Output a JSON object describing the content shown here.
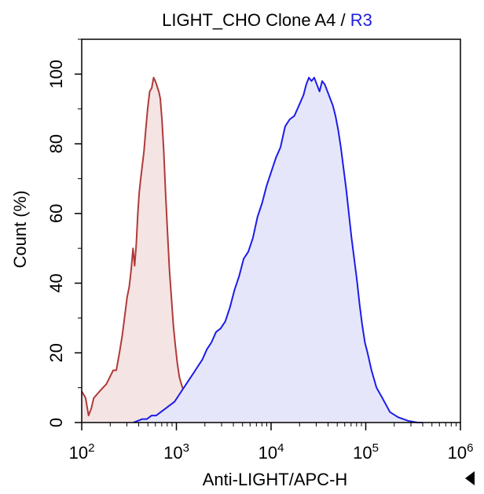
{
  "chart_data": {
    "type": "area",
    "title": "LIGHT_CHO Clone A4",
    "title_separator": " / ",
    "title_gate": "R3",
    "title_gate_color": "#2020e0",
    "xlabel": "Anti-LIGHT/APC-H",
    "ylabel": "Count (%)",
    "xscale": "log",
    "xlim": [
      100,
      1000000
    ],
    "ylim": [
      0,
      110
    ],
    "grid": false,
    "legend": "none",
    "x_ticks": [
      {
        "value": 100,
        "base": "10",
        "exp": "2"
      },
      {
        "value": 1000,
        "base": "10",
        "exp": "3"
      },
      {
        "value": 10000,
        "base": "10",
        "exp": "4"
      },
      {
        "value": 100000,
        "base": "10",
        "exp": "5"
      },
      {
        "value": 1000000,
        "base": "10",
        "exp": "6"
      }
    ],
    "y_ticks": [
      {
        "value": 0,
        "label": "0"
      },
      {
        "value": 20,
        "label": "20"
      },
      {
        "value": 40,
        "label": "40"
      },
      {
        "value": 60,
        "label": "60"
      },
      {
        "value": 80,
        "label": "80"
      },
      {
        "value": 100,
        "label": "100"
      }
    ],
    "series": [
      {
        "color": "#b03a3a",
        "fill": "#f5e4e4",
        "x": [
          100,
          110,
          118,
          126,
          134,
          144,
          155,
          168,
          182,
          198,
          215,
          232,
          250,
          268,
          286,
          302,
          318,
          333,
          348,
          362,
          377,
          391,
          405,
          420,
          437,
          455,
          475,
          497,
          522,
          549,
          575,
          598,
          617,
          633,
          652,
          676,
          704,
          735,
          768,
          804,
          843,
          885,
          929,
          975,
          1023,
          1075,
          1130,
          1189,
          1251,
          1318,
          1390,
          1467,
          1549,
          1637,
          1732,
          1834,
          1944,
          2063,
          2190,
          2328,
          2477,
          2638,
          2812,
          3000,
          3204,
          3424,
          3663,
          3922,
          4203
        ],
        "y": [
          9,
          7,
          2,
          4,
          7,
          8,
          9,
          10,
          11,
          13,
          15,
          15,
          20,
          25,
          31,
          36,
          39,
          44,
          50,
          45,
          51,
          60,
          66,
          70,
          74,
          78,
          84,
          90,
          95,
          96,
          99,
          98,
          97,
          96,
          95,
          93,
          87,
          78,
          66,
          55,
          44,
          36,
          28,
          22,
          17,
          13,
          11,
          9,
          8,
          7,
          6,
          6,
          5,
          5,
          4,
          4,
          3,
          3,
          3,
          2,
          2,
          2,
          1.5,
          1,
          1,
          1,
          0.5,
          0.5,
          0
        ]
      },
      {
        "color": "#1c1ce8",
        "fill": "#e6e6fa",
        "x": [
          350,
          391,
          437,
          489,
          547,
          612,
          684,
          765,
          856,
          957,
          1071,
          1198,
          1340,
          1499,
          1676,
          1875,
          2097,
          2346,
          2624,
          2935,
          3282,
          3671,
          4106,
          4593,
          5137,
          5746,
          6427,
          7189,
          8041,
          8993,
          10059,
          11251,
          12584,
          14075,
          15742,
          17607,
          19693,
          22026,
          23500,
          25071,
          26748,
          28538,
          30447,
          32484,
          34658,
          36978,
          39453,
          42095,
          44913,
          47921,
          51131,
          54557,
          58213,
          62114,
          66278,
          70721,
          75462,
          80525,
          85928,
          91697,
          97856,
          104430,
          115000,
          130000,
          150000,
          180000,
          220000,
          280000,
          350000,
          400000
        ],
        "y": [
          0,
          0.5,
          1,
          1,
          2,
          2,
          3,
          4,
          5,
          6,
          8,
          10,
          12,
          14,
          16,
          18,
          21,
          23,
          26,
          27,
          29,
          33,
          38,
          42,
          47,
          49,
          53,
          59,
          63,
          68,
          72,
          76,
          79,
          85,
          87,
          88,
          91,
          94,
          97,
          99,
          98,
          99,
          97,
          95,
          98,
          97,
          95,
          93,
          91,
          88,
          84,
          79,
          73,
          67,
          60,
          53,
          47,
          41,
          34,
          28,
          23,
          20,
          15,
          10,
          7,
          3,
          1.5,
          0.5,
          0,
          0
        ]
      }
    ]
  }
}
